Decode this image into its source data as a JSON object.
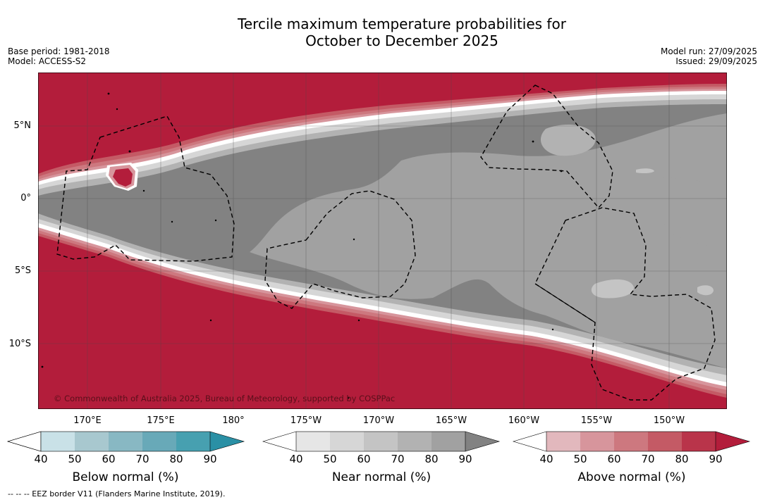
{
  "title_line1": "Tercile maximum temperature probabilities for",
  "title_line2": "October to December 2025",
  "base_period": "Base period: 1981-2018",
  "model": "Model: ACCESS-S2",
  "model_run": "Model run: 27/09/2025",
  "issued": "Issued: 29/09/2025",
  "lat_labels": [
    "5°N",
    "0°",
    "5°S",
    "10°S"
  ],
  "lon_labels": [
    "170°E",
    "175°E",
    "180°",
    "175°W",
    "170°W",
    "165°W",
    "160°W",
    "155°W",
    "150°W"
  ],
  "copyright": "© Commonwealth of Australia 2025, Bureau of Meteorology, supported by COSPPac",
  "colorbars": {
    "below": {
      "label": "Below normal (%)",
      "ticks": [
        "40",
        "50",
        "60",
        "70",
        "80",
        "90"
      ],
      "colors": [
        "#ffffff",
        "#c9e1e7",
        "#a8c8cf",
        "#88b8c3",
        "#68a9b8",
        "#47a0b0",
        "#2a90a5"
      ]
    },
    "near": {
      "label": "Near normal (%)",
      "ticks": [
        "40",
        "50",
        "60",
        "70",
        "80",
        "90"
      ],
      "colors": [
        "#ffffff",
        "#e6e6e6",
        "#d6d6d6",
        "#c4c4c4",
        "#b2b2b2",
        "#a1a1a1",
        "#828282"
      ]
    },
    "above": {
      "label": "Above normal (%)",
      "ticks": [
        "40",
        "50",
        "60",
        "70",
        "80",
        "90"
      ],
      "colors": [
        "#ffffff",
        "#e2b8bd",
        "#d7959c",
        "#cd787f",
        "#c45a65",
        "#b9344a",
        "#b31d3b"
      ]
    }
  },
  "footnote": "-- -- -- EEZ border V11 (Flanders Marine Institute, 2019).",
  "palette": {
    "above_max": "#b31d3b",
    "near_dark": "#828282",
    "near_mid": "#a1a1a1",
    "near_light": "#b2b2b2"
  }
}
